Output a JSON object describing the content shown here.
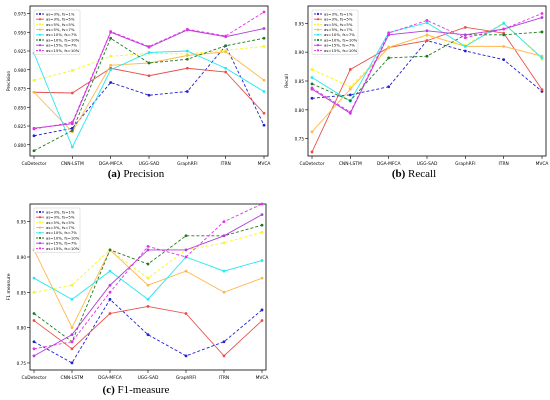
{
  "colors": [
    "#1f1fd6",
    "#e8504a",
    "#f5f52a",
    "#ffb84d",
    "#28e8f0",
    "#207a20",
    "#b040d8",
    "#e830e8"
  ],
  "dashes": [
    true,
    false,
    true,
    false,
    false,
    true,
    false,
    true
  ],
  "charts": {
    "a": {
      "letter": "(a)",
      "caption": "Precision"
    },
    "b": {
      "letter": "(b)",
      "caption": "Recall"
    },
    "c": {
      "letter": "(c)",
      "caption": "F1-measure"
    }
  },
  "chart_data": [
    {
      "type": "line",
      "categories": [
        "CoDetector",
        "CNN-LSTM",
        "DGA-MFCA",
        "UGG-SAD",
        "GraphRFI",
        "ITRN",
        "MVCA"
      ],
      "ylabel": "Precision",
      "ylim": [
        0.785,
        0.985
      ],
      "yticks": [
        0.8,
        0.825,
        0.85,
        0.875,
        0.9,
        0.925,
        0.95,
        0.975
      ],
      "ytick_labels": [
        "0.800",
        "0.825",
        "0.850",
        "0.875",
        "0.900",
        "0.925",
        "0.950",
        "0.975"
      ],
      "legend_loc": "upper-left",
      "series": [
        {
          "name": "as=3%, fs=1%",
          "values": [
            0.812,
            0.822,
            0.883,
            0.866,
            0.871,
            0.932,
            0.826
          ]
        },
        {
          "name": "as=3%, fs=5%",
          "values": [
            0.87,
            0.869,
            0.902,
            0.892,
            0.902,
            0.897,
            0.842
          ]
        },
        {
          "name": "as=5%, fs=5%",
          "values": [
            0.886,
            0.899,
            0.918,
            0.922,
            0.921,
            0.926,
            0.931
          ]
        },
        {
          "name": "as=5%, fs=7%",
          "values": [
            0.87,
            0.817,
            0.906,
            0.909,
            0.919,
            0.924,
            0.886
          ]
        },
        {
          "name": "as=10%, fs=7%",
          "values": [
            0.922,
            0.797,
            0.9,
            0.923,
            0.925,
            0.902,
            0.871
          ]
        },
        {
          "name": "as=10%, fs=10%",
          "values": [
            0.792,
            0.819,
            0.942,
            0.909,
            0.914,
            0.932,
            0.942
          ]
        },
        {
          "name": "as=15%, fs=7%",
          "values": [
            0.822,
            0.828,
            0.95,
            0.93,
            0.953,
            0.944,
            0.955
          ]
        },
        {
          "name": "as=15%, fs=10%",
          "values": [
            0.821,
            0.83,
            0.951,
            0.931,
            0.954,
            0.945,
            0.977
          ]
        }
      ]
    },
    {
      "type": "line",
      "categories": [
        "CoDetector",
        "CNN-LSTM",
        "DGA-MFCA",
        "UGG-SAD",
        "GraphRFI",
        "ITRN",
        "MVCA"
      ],
      "ylabel": "Recall",
      "ylim": [
        0.72,
        0.98
      ],
      "yticks": [
        0.75,
        0.8,
        0.85,
        0.9,
        0.95
      ],
      "ytick_labels": [
        "0.75",
        "0.80",
        "0.85",
        "0.90",
        "0.95"
      ],
      "legend_loc": "upper-left",
      "series": [
        {
          "name": "as=3%, fs=1%",
          "values": [
            0.82,
            0.826,
            0.84,
            0.92,
            0.902,
            0.887,
            0.832
          ]
        },
        {
          "name": "as=3%, fs=5%",
          "values": [
            0.727,
            0.87,
            0.908,
            0.92,
            0.943,
            0.933,
            0.835
          ]
        },
        {
          "name": "as=5%, fs=5%",
          "values": [
            0.87,
            0.84,
            0.909,
            0.929,
            0.912,
            0.951,
            0.888
          ]
        },
        {
          "name": "as=5%, fs=7%",
          "values": [
            0.762,
            0.836,
            0.908,
            0.93,
            0.91,
            0.91,
            0.893
          ]
        },
        {
          "name": "as=10%, fs=7%",
          "values": [
            0.856,
            0.815,
            0.934,
            0.951,
            0.91,
            0.95,
            0.89
          ]
        },
        {
          "name": "as=10%, fs=10%",
          "values": [
            0.845,
            0.816,
            0.89,
            0.893,
            0.93,
            0.93,
            0.935
          ]
        },
        {
          "name": "as=15%, fs=7%",
          "values": [
            0.836,
            0.794,
            0.93,
            0.937,
            0.93,
            0.94,
            0.96
          ]
        },
        {
          "name": "as=15%, fs=10%",
          "values": [
            0.838,
            0.796,
            0.933,
            0.955,
            0.925,
            0.94,
            0.967
          ]
        }
      ]
    },
    {
      "type": "line",
      "categories": [
        "CoDetector",
        "CNN-LSTM",
        "DGA-MFCA",
        "UGG-SAD",
        "GraphRFI",
        "ITRN",
        "MVCA"
      ],
      "ylabel": "F1 measure",
      "ylim": [
        0.74,
        0.975
      ],
      "yticks": [
        0.75,
        0.8,
        0.85,
        0.9,
        0.95
      ],
      "ytick_labels": [
        "0.75",
        "0.80",
        "0.85",
        "0.90",
        "0.95"
      ],
      "legend_loc": "upper-left",
      "series": [
        {
          "name": "as=3%, fs=1%",
          "values": [
            0.78,
            0.75,
            0.84,
            0.79,
            0.76,
            0.78,
            0.825
          ]
        },
        {
          "name": "as=3%, fs=5%",
          "values": [
            0.81,
            0.77,
            0.82,
            0.83,
            0.82,
            0.76,
            0.81
          ]
        },
        {
          "name": "as=5%, fs=5%",
          "values": [
            0.85,
            0.86,
            0.91,
            0.87,
            0.91,
            0.92,
            0.935
          ]
        },
        {
          "name": "as=5%, fs=7%",
          "values": [
            0.91,
            0.8,
            0.91,
            0.86,
            0.88,
            0.85,
            0.87
          ]
        },
        {
          "name": "as=10%, fs=7%",
          "values": [
            0.87,
            0.84,
            0.88,
            0.84,
            0.9,
            0.88,
            0.895
          ]
        },
        {
          "name": "as=10%, fs=10%",
          "values": [
            0.82,
            0.78,
            0.91,
            0.89,
            0.93,
            0.93,
            0.945
          ]
        },
        {
          "name": "as=15%, fs=7%",
          "values": [
            0.76,
            0.79,
            0.86,
            0.91,
            0.91,
            0.93,
            0.96
          ]
        },
        {
          "name": "as=15%, fs=10%",
          "values": [
            0.77,
            0.78,
            0.85,
            0.915,
            0.9,
            0.95,
            0.975
          ]
        }
      ]
    }
  ]
}
